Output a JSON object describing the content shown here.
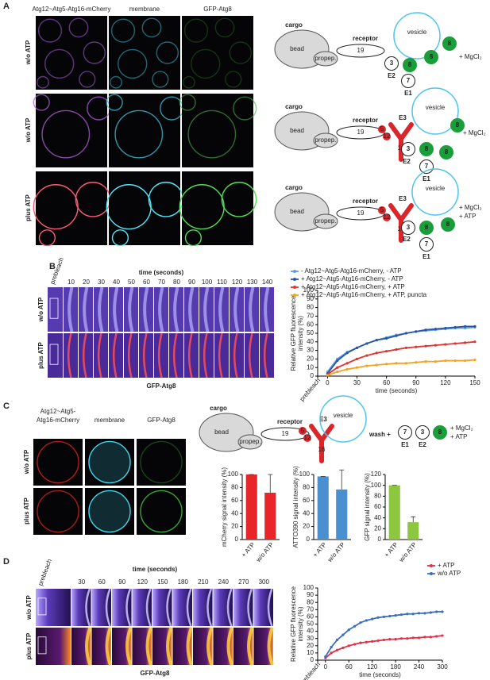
{
  "panel_labels": [
    "A",
    "B",
    "C",
    "D"
  ],
  "panel_a": {
    "column_headers": [
      "Atg12~Atg5-Atg16-mCherry",
      "membrane",
      "GFP-Atg8"
    ],
    "row_labels": [
      "w/o ATP",
      "w/o ATP",
      "plus ATP"
    ],
    "schematics": [
      {
        "cargo": "cargo",
        "bead": "bead",
        "propep": "propep.",
        "receptor": "receptor",
        "receptor_id": "19",
        "vesicle": "vesicle",
        "proteins": [
          "3",
          "8",
          "8",
          "8",
          "7"
        ],
        "enzymes": [
          "E2",
          "E1"
        ],
        "conditions": [
          "+ MgCl₂"
        ]
      },
      {
        "cargo": "cargo",
        "bead": "bead",
        "propep": "propep.",
        "receptor": "receptor",
        "receptor_id": "19",
        "e3": "E3",
        "e3_parts": [
          "5",
          "12",
          "16"
        ],
        "vesicle": "vesicle",
        "proteins": [
          "3",
          "8",
          "8",
          "8",
          "7"
        ],
        "enzymes": [
          "E2",
          "E1"
        ],
        "conditions": [
          "+ MgCl₂"
        ]
      },
      {
        "cargo": "cargo",
        "bead": "bead",
        "propep": "propep.",
        "receptor": "receptor",
        "receptor_id": "19",
        "e3": "E3",
        "e3_parts": [
          "5",
          "12",
          "16"
        ],
        "vesicle": "vesicle",
        "proteins": [
          "3",
          "8",
          "8",
          "7"
        ],
        "enzymes": [
          "E2",
          "E1"
        ],
        "conditions": [
          "+ MgCl₂",
          "+ ATP"
        ]
      }
    ]
  },
  "panel_b": {
    "kymograph": {
      "title": "time (seconds)",
      "prebleach": "prebleach",
      "times": [
        10,
        20,
        30,
        40,
        50,
        60,
        70,
        80,
        90,
        100,
        110,
        120,
        130,
        140
      ],
      "row_labels": [
        "w/o ATP",
        "plus ATP"
      ],
      "caption": "GFP-Atg8"
    }
  },
  "panel_c": {
    "column_headers": [
      [
        "Atg12~Atg5-",
        "Atg16-mCherry"
      ],
      [
        "membrane"
      ],
      [
        "GFP-Atg8"
      ]
    ],
    "row_labels": [
      "w/o ATP",
      "plus ATP"
    ],
    "schematic": {
      "cargo": "cargo",
      "bead": "bead",
      "propep": "propep.",
      "receptor": "receptor",
      "receptor_id": "19",
      "e3": "E3",
      "e3_parts": [
        "5",
        "12",
        "16"
      ],
      "vesicle": "vesicle",
      "wash": "wash +",
      "proteins": [
        "7",
        "3",
        "8"
      ],
      "enzymes": [
        "E1",
        "E2"
      ],
      "conditions": [
        "+ MgCl₂",
        "+ ATP"
      ]
    }
  },
  "panel_d": {
    "kymograph": {
      "title": "time (seconds)",
      "prebleach": "prebleach",
      "times": [
        30,
        60,
        90,
        120,
        150,
        180,
        210,
        240,
        270,
        300
      ],
      "row_labels": [
        "w/o ATP",
        "plus ATP"
      ],
      "caption": "GFP-Atg8"
    }
  },
  "chart_data": [
    {
      "type": "line",
      "x": [
        0,
        10,
        20,
        30,
        40,
        50,
        60,
        70,
        80,
        90,
        100,
        110,
        120,
        130,
        140,
        150
      ],
      "xlim": [
        -10,
        150
      ],
      "xticks": [
        {
          "value": -10,
          "label": "prebleach"
        },
        0,
        30,
        60,
        90,
        120,
        150
      ],
      "ylim": [
        0,
        100
      ],
      "yticks": [
        0,
        10,
        20,
        30,
        40,
        50,
        60,
        70,
        80,
        90,
        100
      ],
      "xlabel": "time (seconds)",
      "ylabel": [
        "Relative GFP fluorescence",
        "intensity (%)"
      ],
      "series": [
        {
          "name": "- Atg12~Atg5-Atg16-mCherry, - ATP",
          "color": "#5aa0e0",
          "values": [
            5,
            20,
            28,
            33,
            38,
            42,
            45,
            48,
            50,
            52,
            53,
            54,
            55,
            56,
            56,
            57
          ]
        },
        {
          "name": "+ Atg12~Atg5-Atg16-mCherry, - ATP",
          "color": "#2a55a5",
          "values": [
            3,
            18,
            27,
            33,
            38,
            42,
            44,
            47,
            50,
            52,
            54,
            55,
            56,
            57,
            58,
            58
          ]
        },
        {
          "name": "+ Atg12~Atg5-Atg16-mCherry, + ATP",
          "color": "#e3312e",
          "values": [
            2,
            10,
            15,
            20,
            24,
            27,
            29,
            31,
            33,
            34,
            35,
            36,
            37,
            38,
            39,
            40
          ]
        },
        {
          "name": "+ Atg12~Atg5-Atg16-mCherry, + ATP, puncta",
          "color": "#f5a21e",
          "values": [
            1,
            5,
            8,
            10,
            12,
            13,
            14,
            15,
            15,
            16,
            17,
            17,
            18,
            18,
            18,
            19
          ]
        }
      ]
    },
    {
      "type": "bar",
      "categories": [
        "+ ATP",
        "w/o ATP"
      ],
      "values": [
        100,
        72
      ],
      "errors": [
        0,
        28
      ],
      "color": "#e8262a",
      "ylim": [
        0,
        100
      ],
      "yticks": [
        0,
        20,
        40,
        60,
        80,
        100
      ],
      "ylabel": "mCherry signal intensity (%)"
    },
    {
      "type": "bar",
      "categories": [
        "+ ATP",
        "w/o ATP"
      ],
      "values": [
        97,
        77
      ],
      "errors": [
        0,
        30
      ],
      "color": "#4a90d0",
      "ylim": [
        0,
        100
      ],
      "yticks": [
        0,
        20,
        40,
        60,
        80,
        100
      ],
      "ylabel": "ATTO390 signal intensity (%)"
    },
    {
      "type": "bar",
      "categories": [
        "+ ATP",
        "w/o ATP"
      ],
      "values": [
        100,
        32
      ],
      "errors": [
        0,
        10
      ],
      "color": "#8dc63f",
      "ylim": [
        0,
        120
      ],
      "yticks": [
        0,
        20,
        40,
        60,
        80,
        100,
        120
      ],
      "ylabel": "GFP signal intensity (%)"
    },
    {
      "type": "line",
      "x": [
        0,
        15,
        30,
        45,
        60,
        75,
        90,
        105,
        120,
        135,
        150,
        165,
        180,
        195,
        210,
        225,
        240,
        255,
        270,
        285,
        300
      ],
      "xlim": [
        -20,
        300
      ],
      "xticks": [
        {
          "value": -20,
          "label": "prebleach"
        },
        0,
        60,
        120,
        180,
        240,
        300
      ],
      "ylim": [
        0,
        100
      ],
      "yticks": [
        0,
        10,
        20,
        30,
        40,
        50,
        60,
        70,
        80,
        90,
        100
      ],
      "xlabel": "time (seconds)",
      "ylabel": [
        "Relative GFP fluorescence",
        "intensity (%)"
      ],
      "series": [
        {
          "name": "+ ATP",
          "color": "#e0304a",
          "values": [
            3,
            10,
            14,
            17,
            20,
            22,
            24,
            25,
            26,
            27,
            28,
            29,
            29,
            30,
            30,
            31,
            31,
            32,
            32,
            33,
            34
          ]
        },
        {
          "name": "w/o ATP",
          "color": "#3a6fc0",
          "values": [
            5,
            18,
            28,
            35,
            42,
            47,
            52,
            55,
            57,
            59,
            60,
            61,
            62,
            63,
            64,
            64,
            65,
            65,
            66,
            67,
            67
          ]
        }
      ]
    }
  ]
}
